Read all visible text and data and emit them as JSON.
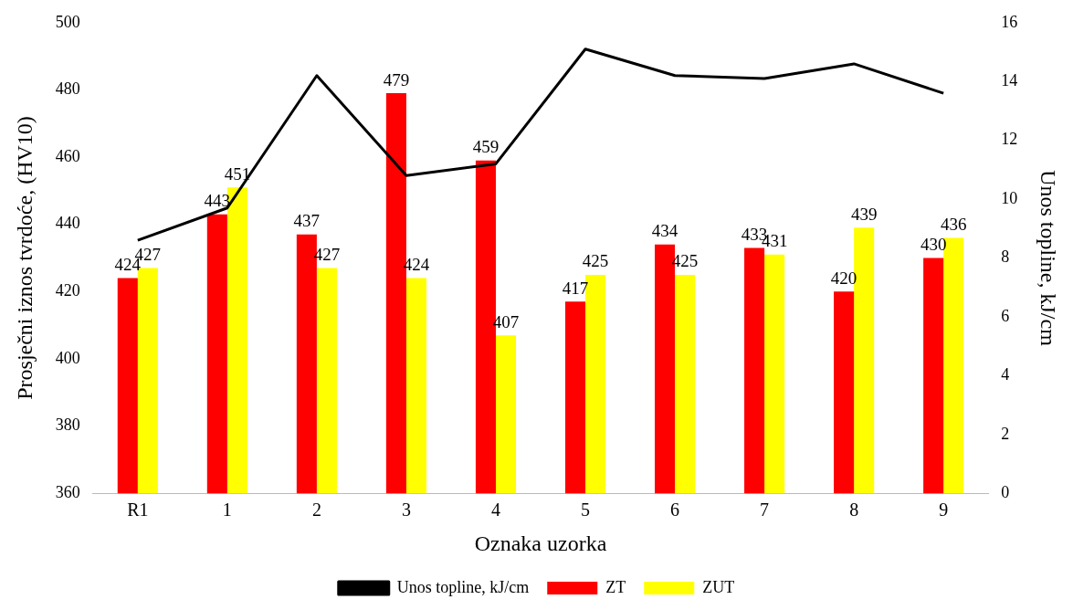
{
  "chart_data": {
    "type": "bar",
    "xlabel": "Oznaka uzorka",
    "ylabel": "Prosječni iznos tvrdoće, (HV10)",
    "y2label": "Unos topline, kJ/cm",
    "categories": [
      "R1",
      "1",
      "2",
      "3",
      "4",
      "5",
      "6",
      "7",
      "8",
      "9"
    ],
    "series": [
      {
        "name": "ZT",
        "color": "#ff0000",
        "values": [
          424,
          443,
          437,
          479,
          459,
          417,
          434,
          433,
          420,
          430
        ],
        "value_labels": [
          "424",
          "443",
          "437",
          "479",
          "459",
          "417",
          "434",
          "433",
          "420",
          "430"
        ]
      },
      {
        "name": "ZUT",
        "color": "#ffff00",
        "values": [
          427,
          451,
          427,
          424,
          407,
          425,
          425,
          431,
          439,
          436
        ],
        "value_labels": [
          "427",
          "451",
          "427",
          "424",
          "407",
          "425",
          "425",
          "431",
          "439",
          "436"
        ]
      },
      {
        "name": "Unos topline, kJ/cm",
        "type": "line",
        "axis": "y2",
        "color": "#000000",
        "values": [
          8.6,
          9.7,
          14.2,
          10.8,
          11.2,
          15.1,
          14.2,
          14.1,
          14.6,
          13.6
        ]
      }
    ],
    "ylim": [
      360,
      500
    ],
    "yticks": [
      360,
      380,
      400,
      420,
      440,
      460,
      480,
      500
    ],
    "y2lim": [
      0,
      16
    ],
    "y2ticks": [
      0,
      2,
      4,
      6,
      8,
      10,
      12,
      14,
      16
    ],
    "grid": false,
    "legend": "bottom",
    "marker": "none"
  }
}
